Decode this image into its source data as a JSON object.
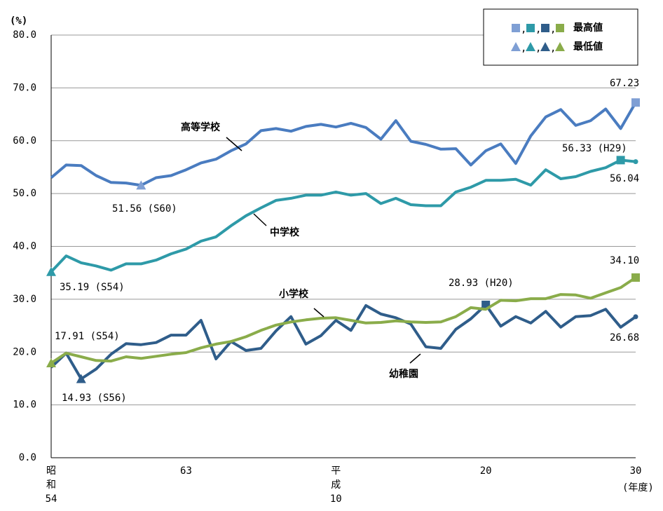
{
  "chart_data": {
    "type": "line",
    "y_label": "(%)",
    "x_label": "(年度)",
    "categories": [
      "昭和54",
      null,
      null,
      null,
      null,
      null,
      null,
      null,
      null,
      "63",
      null,
      null,
      null,
      null,
      null,
      null,
      null,
      null,
      null,
      "平成10",
      null,
      null,
      null,
      null,
      null,
      null,
      null,
      null,
      null,
      "20",
      null,
      null,
      null,
      null,
      null,
      null,
      null,
      null,
      null,
      "30"
    ],
    "ylim": [
      0,
      80
    ],
    "yticks": [
      {
        "value": 0,
        "label": "0.0"
      },
      {
        "value": 10,
        "label": "10.0"
      },
      {
        "value": 20,
        "label": "20.0"
      },
      {
        "value": 30,
        "label": "30.0"
      },
      {
        "value": 40,
        "label": "40.0"
      },
      {
        "value": 50,
        "label": "50.0"
      },
      {
        "value": 60,
        "label": "60.0"
      },
      {
        "value": 70,
        "label": "70.0"
      },
      {
        "value": 80,
        "label": "80.0"
      }
    ],
    "grid": true,
    "series": [
      {
        "name": "高等学校",
        "color": "#4a7cc0",
        "marker_color": "#7f9fd4",
        "values": [
          53.0,
          55.4,
          55.3,
          53.4,
          52.1,
          52.0,
          51.56,
          53.0,
          53.4,
          54.5,
          55.8,
          56.5,
          58.1,
          59.4,
          61.9,
          62.3,
          61.8,
          62.7,
          63.1,
          62.6,
          63.3,
          62.5,
          60.3,
          63.8,
          59.9,
          59.3,
          58.4,
          58.5,
          55.4,
          58.1,
          59.4,
          55.7,
          60.9,
          64.5,
          65.9,
          62.9,
          63.8,
          66.0,
          62.3,
          67.23
        ],
        "highlights": [
          {
            "index": 39,
            "marker": "max"
          },
          {
            "index": 6,
            "marker": "min"
          }
        ]
      },
      {
        "name": "中学校",
        "color": "#2e9aa8",
        "marker_color": "#2e9aa8",
        "values": [
          35.19,
          38.2,
          36.9,
          36.3,
          35.5,
          36.7,
          36.7,
          37.4,
          38.6,
          39.5,
          41.0,
          41.8,
          43.9,
          45.8,
          47.3,
          48.7,
          49.1,
          49.7,
          49.7,
          50.3,
          49.7,
          50.0,
          48.1,
          49.1,
          47.9,
          47.7,
          47.7,
          50.3,
          51.2,
          52.5,
          52.5,
          52.7,
          51.6,
          54.5,
          52.8,
          53.2,
          54.2,
          54.9,
          56.33,
          56.04
        ],
        "highlights": [
          {
            "index": 38,
            "marker": "max"
          },
          {
            "index": 0,
            "marker": "min"
          }
        ]
      },
      {
        "name": "幼稚園",
        "color": "#2f5d8a",
        "marker_color": "#2f5d8a",
        "values": [
          17.1,
          19.8,
          14.93,
          16.8,
          19.6,
          21.6,
          21.4,
          21.8,
          23.2,
          23.2,
          26.0,
          18.7,
          22.0,
          20.3,
          20.7,
          24.0,
          26.7,
          21.5,
          23.1,
          26.0,
          24.1,
          28.8,
          27.2,
          26.5,
          25.3,
          21.0,
          20.7,
          24.3,
          26.3,
          28.93,
          24.9,
          26.7,
          25.5,
          27.7,
          24.7,
          26.7,
          26.9,
          28.1,
          24.7,
          26.68
        ],
        "highlights": [
          {
            "index": 29,
            "marker": "max"
          },
          {
            "index": 2,
            "marker": "min"
          }
        ]
      },
      {
        "name": "小学校",
        "color": "#8aac4a",
        "marker_color": "#8aac4a",
        "values": [
          17.91,
          19.8,
          19.1,
          18.4,
          18.3,
          19.1,
          18.8,
          19.2,
          19.6,
          19.9,
          20.8,
          21.5,
          22.0,
          22.9,
          24.1,
          25.1,
          25.7,
          26.1,
          26.4,
          26.5,
          26.0,
          25.5,
          25.6,
          25.9,
          25.7,
          25.6,
          25.7,
          26.7,
          28.4,
          28.1,
          29.8,
          29.7,
          30.1,
          30.1,
          30.9,
          30.8,
          30.2,
          31.2,
          32.2,
          34.1
        ],
        "highlights": [
          {
            "index": 39,
            "marker": "max"
          },
          {
            "index": 0,
            "marker": "min"
          }
        ]
      }
    ],
    "legend": {
      "separator": ",",
      "max_label": "最高値",
      "min_label": "最低値"
    },
    "annotations": [
      "67.23",
      "56.33 (H29)",
      "56.04",
      "51.56 (S60)",
      "35.19 (S54)",
      "34.10",
      "28.93 (H20)",
      "17.91 (S54)",
      "14.93 (S56)",
      "26.68"
    ]
  }
}
